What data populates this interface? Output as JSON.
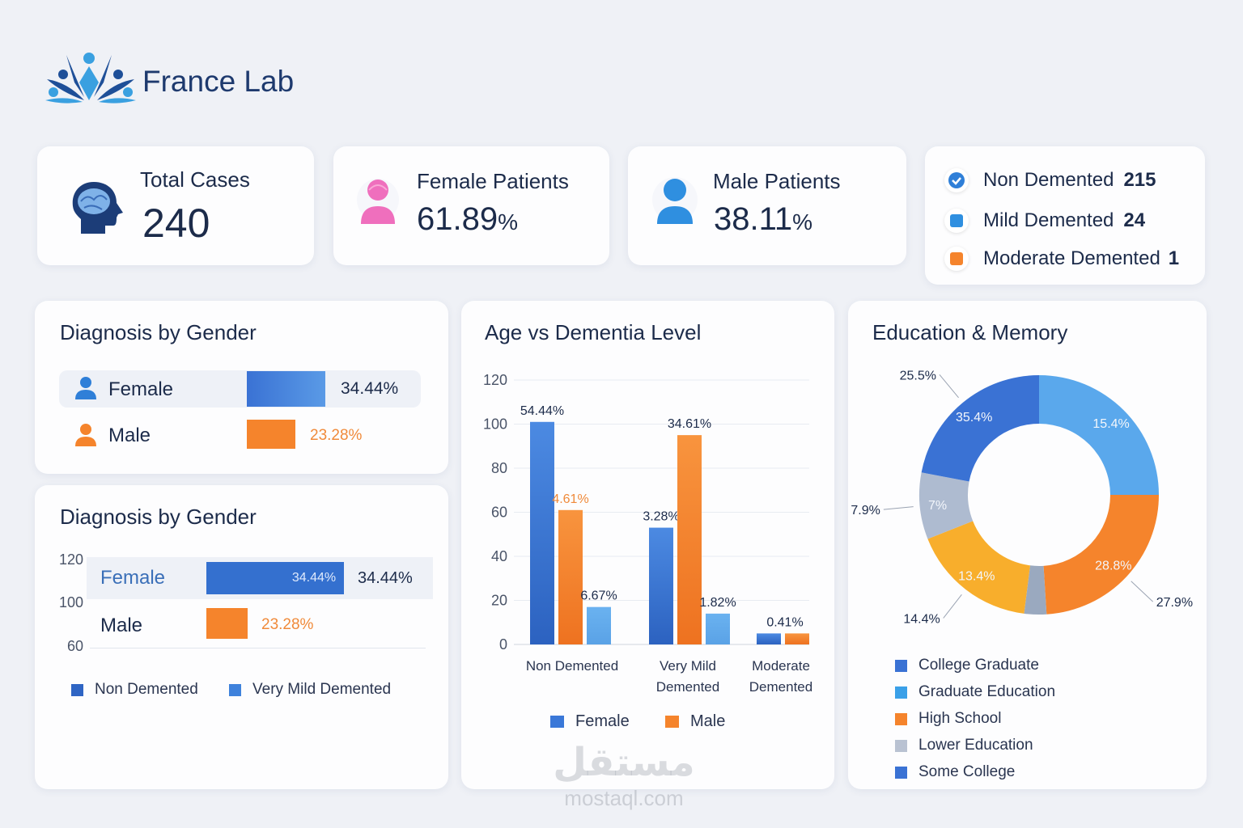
{
  "brand": {
    "name": "France Lab",
    "colors": {
      "navy": "#1e3a6e",
      "sky": "#3aa0e0"
    }
  },
  "kpis": {
    "total": {
      "title": "Total Cases",
      "value": "240",
      "icon": "brain-head-icon"
    },
    "female": {
      "title": "Female Patients",
      "value": "61.89",
      "unit": "%",
      "icon": "female-user-icon"
    },
    "male": {
      "title": "Male Patients",
      "value": "38.11",
      "unit": "%",
      "icon": "male-user-icon"
    }
  },
  "status_summary": [
    {
      "label": "Non Demented",
      "count": "215",
      "icon": "check-circle-icon",
      "color": "#2f7fd8"
    },
    {
      "label": "Mild Demented",
      "count": "24",
      "icon": "square-icon",
      "color": "#2f8fe0"
    },
    {
      "label": "Moderate Demented",
      "count": "1",
      "icon": "square-icon",
      "color": "#f5842c"
    }
  ],
  "gender_panel_1": {
    "title": "Diagnosis by Gender",
    "rows": [
      {
        "label": "Female",
        "value": "34.44%",
        "percent": 34.44,
        "color": "#3a78d8"
      },
      {
        "label": "Male",
        "value": "23.28%",
        "percent": 23.28,
        "color": "#f5842c"
      }
    ]
  },
  "gender_panel_2": {
    "title": "Diagnosis by Gender",
    "y_ticks": [
      "120",
      "100",
      "60"
    ],
    "rows": [
      {
        "label": "Female",
        "inner_value": "34.44%",
        "value": "34.44%",
        "percent": 34.44
      },
      {
        "label": "Male",
        "value": "23.28%",
        "percent": 23.28
      }
    ],
    "legend": [
      {
        "label": "Non Demented",
        "color": "#2f65c4"
      },
      {
        "label": "Very Mild Demented",
        "color": "#3f82dc"
      }
    ]
  },
  "chart_data": [
    {
      "type": "bar",
      "title": "Age vs Dementia Level",
      "categories": [
        "Non Demented",
        "Very Mild Demented",
        "Moderate Demented"
      ],
      "category_lines": [
        [
          "Non Demented"
        ],
        [
          "Very Mild",
          "Demented"
        ],
        [
          "Moderate",
          "Demented"
        ]
      ],
      "ylim": [
        0,
        120
      ],
      "y_ticks": [
        0,
        20,
        40,
        60,
        80,
        100,
        120
      ],
      "grid": true,
      "legend_position": "bottom",
      "series": [
        {
          "name": "Female",
          "color": "#3a78d8",
          "values": [
            101,
            53,
            5
          ],
          "labels": [
            "54.44%",
            "3.28%",
            ""
          ]
        },
        {
          "name": "Male",
          "color": "#f5842c",
          "values": [
            61,
            95,
            5
          ],
          "labels": [
            "4.61%",
            "34.61%",
            ""
          ]
        },
        {
          "color": "#64aef0",
          "values": [
            17,
            14,
            null
          ],
          "labels": [
            "6.67%",
            "1.82%",
            ""
          ]
        }
      ],
      "group_labels": [
        "",
        "",
        "0.41%"
      ]
    },
    {
      "type": "pie",
      "title": "Education & Memory",
      "donut": true,
      "slices": [
        {
          "value": 25,
          "label": "15.4%",
          "color": "#5aa8ec"
        },
        {
          "value": 24,
          "label": "28.8%",
          "outer_label": "27.9%",
          "color": "#f5842c"
        },
        {
          "value": 3,
          "label": "",
          "color": "#9aa9bf"
        },
        {
          "value": 17,
          "label": "13.4%",
          "outer_label": "14.4%",
          "color": "#f8ae2c"
        },
        {
          "value": 9,
          "label": "7%",
          "outer_label": "7.9%",
          "color": "#aebbd0"
        },
        {
          "value": 22,
          "label": "35.4%",
          "outer_label": "25.5%",
          "color": "#3a72d4"
        }
      ],
      "legend": [
        {
          "label": "College Graduate",
          "color": "#3a72d4"
        },
        {
          "label": "Graduate Education",
          "color": "#3aa0e8"
        },
        {
          "label": "High School",
          "color": "#f5842c"
        },
        {
          "label": "Lower Education",
          "color": "#b9c2d2"
        },
        {
          "label": "Some College",
          "color": "#3a72d4"
        }
      ],
      "legend_position": "bottom"
    }
  ],
  "watermark": {
    "arabic": "مستقل",
    "latin": "mostaql.com"
  }
}
